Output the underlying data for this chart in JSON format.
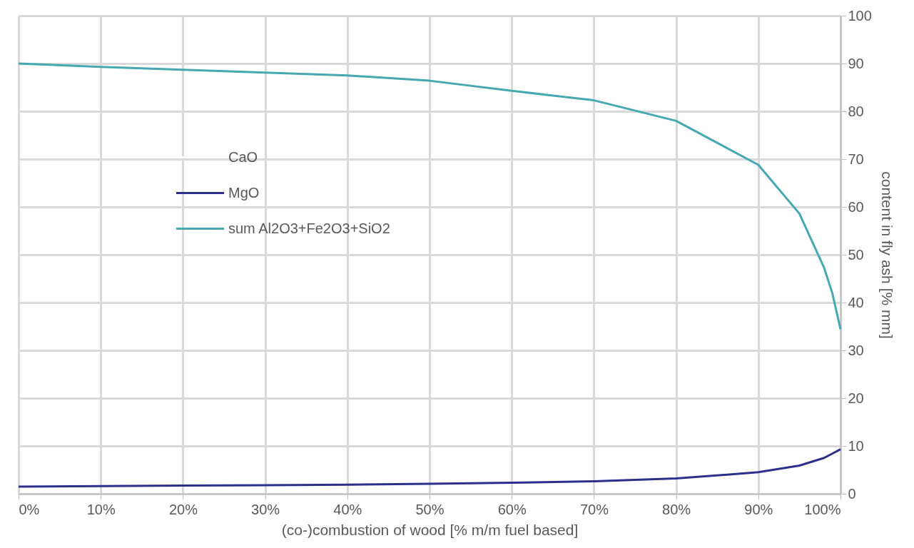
{
  "chart_data": {
    "type": "line",
    "xlabel": "(co-)combustion of wood [% m/m fuel based]",
    "ylabel": "content in fly ash [% mm]",
    "x": [
      0,
      10,
      20,
      30,
      40,
      50,
      60,
      70,
      80,
      90,
      95,
      98,
      99,
      100
    ],
    "series": [
      {
        "name": "CaO",
        "color": "#ffffff",
        "values": [
          null,
          null,
          null,
          null,
          null,
          null,
          null,
          null,
          null,
          null,
          null,
          null,
          null,
          null
        ]
      },
      {
        "name": "MgO",
        "color": "#2e2e8c",
        "values": [
          1.5,
          1.6,
          1.7,
          1.8,
          1.9,
          2.1,
          2.3,
          2.6,
          3.2,
          4.5,
          5.9,
          7.5,
          8.4,
          9.3
        ]
      },
      {
        "name": "sum Al2O3+Fe2O3+SiO2",
        "color": "#46a8b0",
        "values": [
          90.0,
          89.3,
          88.7,
          88.1,
          87.5,
          86.4,
          84.3,
          82.3,
          78.0,
          68.8,
          58.6,
          47.3,
          42.0,
          34.4
        ]
      }
    ],
    "xlim": [
      0,
      100
    ],
    "xticks": [
      {
        "value": 0,
        "label": "0%"
      },
      {
        "value": 10,
        "label": "10%"
      },
      {
        "value": 20,
        "label": "20%"
      },
      {
        "value": 30,
        "label": "30%"
      },
      {
        "value": 40,
        "label": "40%"
      },
      {
        "value": 50,
        "label": "50%"
      },
      {
        "value": 60,
        "label": "60%"
      },
      {
        "value": 70,
        "label": "70%"
      },
      {
        "value": 80,
        "label": "80%"
      },
      {
        "value": 90,
        "label": "90%"
      },
      {
        "value": 100,
        "label": "100%"
      }
    ],
    "ylim": [
      0,
      100
    ],
    "yticks": [
      0,
      10,
      20,
      30,
      40,
      50,
      60,
      70,
      80,
      90,
      100
    ],
    "grid": true,
    "legend": "top left",
    "marker": "none",
    "line_style": "solid"
  }
}
